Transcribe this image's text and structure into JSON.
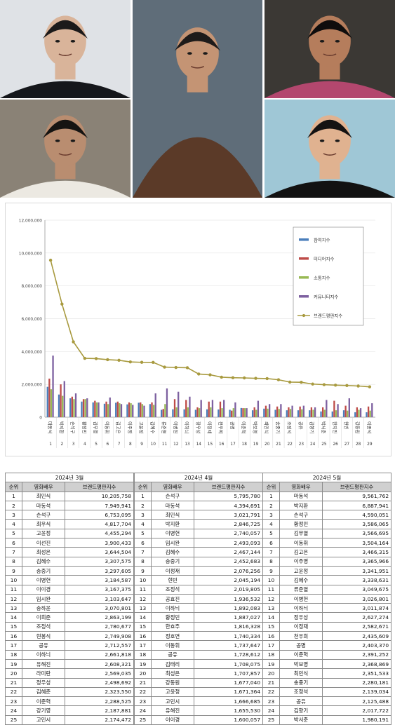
{
  "photos": [
    {
      "name": "photo-top-left",
      "bg": "#dfe2e6",
      "skin": "#d9b49a",
      "hair": "#1c1a1a",
      "shirt": "#15171b"
    },
    {
      "name": "photo-bottom-left",
      "bg": "#8a8276",
      "skin": "#b98d70",
      "hair": "#161412",
      "shirt": "#ece9e2"
    },
    {
      "name": "photo-center",
      "bg": "#5f6d79",
      "skin": "#c49474",
      "hair": "#1e1b1a",
      "shirt": "#5b3a28"
    },
    {
      "name": "photo-top-right",
      "bg": "#3b3834",
      "skin": "#b57d5c",
      "hair": "#0f0d0d",
      "shirt": "#b3476e"
    },
    {
      "name": "photo-bottom-right",
      "bg": "#9fc7d6",
      "skin": "#e0b290",
      "hair": "#141212",
      "shirt": "#121212"
    }
  ],
  "chart_data": {
    "type": "bar",
    "categories": [
      "마동석",
      "박지환",
      "손석구",
      "황정민",
      "김무열",
      "이동휘",
      "김고은",
      "이주영",
      "고윤정",
      "김혜수",
      "류준열",
      "이병헌",
      "이하늬",
      "정우성",
      "이정재",
      "천우희",
      "공명",
      "이준혁",
      "박보영",
      "최민식",
      "송중기",
      "조정석",
      "공유",
      "김향기",
      "박서준",
      "한지민",
      "현빈",
      "강동원",
      "이종석"
    ],
    "rank_labels": [
      "1",
      "2",
      "3",
      "4",
      "5",
      "6",
      "7",
      "8",
      "9",
      "10",
      "11",
      "12",
      "13",
      "14",
      "15",
      "16",
      "17",
      "18",
      "19",
      "20",
      "21",
      "22",
      "23",
      "24",
      "25",
      "26",
      "27",
      "28",
      "29"
    ],
    "series": [
      {
        "name": "참여지수",
        "type": "bar",
        "color": "#4a7ebb",
        "values": [
          1850000,
          1380000,
          1150000,
          950000,
          900000,
          820000,
          880000,
          780000,
          880000,
          800000,
          450000,
          480000,
          480000,
          450000,
          480000,
          470000,
          450000,
          560000,
          420000,
          520000,
          450000,
          420000,
          420000,
          420000,
          350000,
          350000,
          420000,
          300000,
          300000
        ]
      },
      {
        "name": "미디어지수",
        "type": "bar",
        "color": "#be4b48",
        "values": [
          2350000,
          2000000,
          1250000,
          1100000,
          1000000,
          950000,
          950000,
          900000,
          900000,
          900000,
          500000,
          1100000,
          1050000,
          600000,
          950000,
          950000,
          400000,
          550000,
          600000,
          700000,
          650000,
          600000,
          650000,
          600000,
          600000,
          1000000,
          700000,
          600000,
          650000
        ]
      },
      {
        "name": "소통지수",
        "type": "bar",
        "color": "#98b954",
        "values": [
          1700000,
          1300000,
          1100000,
          1100000,
          900000,
          800000,
          850000,
          850000,
          800000,
          750000,
          800000,
          600000,
          600000,
          550000,
          600000,
          550000,
          550000,
          550000,
          450000,
          520000,
          500000,
          500000,
          480000,
          450000,
          450000,
          420000,
          400000,
          450000,
          400000
        ]
      },
      {
        "name": "커뮤니티지수",
        "type": "bar",
        "color": "#7d60a0",
        "values": [
          3750000,
          2200000,
          1450000,
          1150000,
          900000,
          1200000,
          800000,
          750000,
          700000,
          1450000,
          1750000,
          1550000,
          1250000,
          1050000,
          1050000,
          1050000,
          900000,
          550000,
          1000000,
          800000,
          800000,
          700000,
          700000,
          600000,
          1050000,
          800000,
          1150000,
          550000,
          850000
        ]
      },
      {
        "name": "브랜드평판지수",
        "type": "line",
        "color": "#a89a3f",
        "values": [
          9561762,
          6887941,
          4590051,
          3586065,
          3566695,
          3504164,
          3466315,
          3365966,
          3341951,
          3338631,
          3049675,
          3026801,
          3011874,
          2627274,
          2582671,
          2435609,
          2403370,
          2391252,
          2368869,
          2351533,
          2280181,
          2139034,
          2125488,
          2017722,
          1980191,
          1950000,
          1930000,
          1900000,
          1850000
        ]
      }
    ],
    "ylim": [
      0,
      12000000
    ],
    "yticks": [
      "0",
      "2,000,000",
      "4,000,000",
      "6,000,000",
      "8,000,000",
      "10,000,000",
      "12,000,000"
    ],
    "ytick_values": [
      0,
      2000000,
      4000000,
      6000000,
      8000000,
      10000000,
      12000000
    ],
    "legend_position": "top-right"
  },
  "tables": [
    {
      "period": "2024년 3월",
      "headers": [
        "순위",
        "영화배우",
        "브랜드평판지수"
      ],
      "rows": [
        [
          "1",
          "최민식",
          "10,205,758"
        ],
        [
          "2",
          "마동석",
          "7,949,941"
        ],
        [
          "3",
          "손석구",
          "6,753,095"
        ],
        [
          "4",
          "최우식",
          "4,817,704"
        ],
        [
          "5",
          "고윤정",
          "4,455,294"
        ],
        [
          "6",
          "이선진",
          "3,900,433"
        ],
        [
          "7",
          "최성은",
          "3,644,504"
        ],
        [
          "8",
          "김혜수",
          "3,307,575"
        ],
        [
          "9",
          "송중기",
          "3,297,605"
        ],
        [
          "10",
          "이병헌",
          "3,184,587"
        ],
        [
          "11",
          "이이경",
          "3,167,375"
        ],
        [
          "12",
          "임시완",
          "3,103,647"
        ],
        [
          "13",
          "송하윤",
          "3,070,801"
        ],
        [
          "14",
          "이희준",
          "2,863,199"
        ],
        [
          "15",
          "조정석",
          "2,780,677"
        ],
        [
          "16",
          "현봉식",
          "2,749,908"
        ],
        [
          "17",
          "공유",
          "2,712,557"
        ],
        [
          "18",
          "이하늬",
          "2,661,818"
        ],
        [
          "19",
          "유해진",
          "2,608,321"
        ],
        [
          "20",
          "라미란",
          "2,569,035"
        ],
        [
          "21",
          "정우성",
          "2,498,692"
        ],
        [
          "22",
          "김혜준",
          "2,323,550"
        ],
        [
          "23",
          "이준혁",
          "2,288,525"
        ],
        [
          "24",
          "강기영",
          "2,187,881"
        ],
        [
          "25",
          "고민시",
          "2,174,472"
        ]
      ]
    },
    {
      "period": "2024년 4월",
      "headers": [
        "순위",
        "영화배우",
        "브랜드평판지수"
      ],
      "rows": [
        [
          "1",
          "손석구",
          "5,795,780"
        ],
        [
          "2",
          "마동석",
          "4,394,691"
        ],
        [
          "3",
          "최민식",
          "3,021,791"
        ],
        [
          "4",
          "박지환",
          "2,846,725"
        ],
        [
          "5",
          "이병헌",
          "2,740,057"
        ],
        [
          "6",
          "임시완",
          "2,493,093"
        ],
        [
          "7",
          "김혜수",
          "2,467,144"
        ],
        [
          "8",
          "송중기",
          "2,452,683"
        ],
        [
          "9",
          "이정재",
          "2,076,256"
        ],
        [
          "10",
          "현빈",
          "2,045,194"
        ],
        [
          "11",
          "조정석",
          "2,019,805"
        ],
        [
          "12",
          "공효진",
          "1,936,532"
        ],
        [
          "13",
          "이하늬",
          "1,892,083"
        ],
        [
          "14",
          "황정민",
          "1,887,027"
        ],
        [
          "15",
          "한효주",
          "1,816,328"
        ],
        [
          "16",
          "정호연",
          "1,740,334"
        ],
        [
          "17",
          "이동휘",
          "1,737,647"
        ],
        [
          "18",
          "공유",
          "1,728,612"
        ],
        [
          "19",
          "김태리",
          "1,708,075"
        ],
        [
          "20",
          "최성은",
          "1,707,857"
        ],
        [
          "21",
          "강동원",
          "1,677,040"
        ],
        [
          "22",
          "고윤정",
          "1,671,364"
        ],
        [
          "23",
          "고민시",
          "1,666,685"
        ],
        [
          "24",
          "유해진",
          "1,655,530"
        ],
        [
          "25",
          "이이경",
          "1,600,057"
        ]
      ]
    },
    {
      "period": "2024년 5월",
      "headers": [
        "순위",
        "영화배우",
        "브랜드평판지수"
      ],
      "rows": [
        [
          "1",
          "마동석",
          "9,561,762"
        ],
        [
          "2",
          "박지환",
          "6,887,941"
        ],
        [
          "3",
          "손석구",
          "4,590,051"
        ],
        [
          "4",
          "황정민",
          "3,586,065"
        ],
        [
          "5",
          "김무열",
          "3,566,695"
        ],
        [
          "6",
          "이동휘",
          "3,504,164"
        ],
        [
          "7",
          "김고은",
          "3,466,315"
        ],
        [
          "8",
          "이주영",
          "3,365,966"
        ],
        [
          "9",
          "고윤정",
          "3,341,951"
        ],
        [
          "10",
          "김혜수",
          "3,338,631"
        ],
        [
          "11",
          "류준열",
          "3,049,675"
        ],
        [
          "12",
          "이병헌",
          "3,026,801"
        ],
        [
          "13",
          "이하늬",
          "3,011,874"
        ],
        [
          "14",
          "정우성",
          "2,627,274"
        ],
        [
          "15",
          "이정재",
          "2,582,671"
        ],
        [
          "16",
          "천우희",
          "2,435,609"
        ],
        [
          "17",
          "공명",
          "2,403,370"
        ],
        [
          "18",
          "이준혁",
          "2,391,252"
        ],
        [
          "19",
          "박보영",
          "2,368,869"
        ],
        [
          "20",
          "최민식",
          "2,351,533"
        ],
        [
          "21",
          "송중기",
          "2,280,181"
        ],
        [
          "22",
          "조정석",
          "2,139,034"
        ],
        [
          "23",
          "공유",
          "2,125,488"
        ],
        [
          "24",
          "김향기",
          "2,017,722"
        ],
        [
          "25",
          "박서준",
          "1,980,191"
        ]
      ]
    }
  ]
}
